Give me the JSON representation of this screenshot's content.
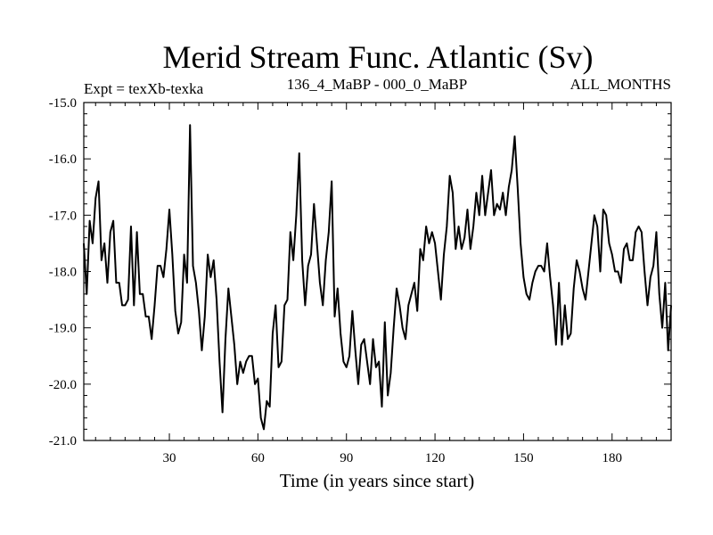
{
  "chart_data": {
    "type": "line",
    "title": "Merid Stream Func. Atlantic (Sv)",
    "subtitle_left": "Expt = texXb-texka",
    "subtitle_center": "136_4_MaBP - 000_0_MaBP",
    "subtitle_right": "ALL_MONTHS",
    "xlabel": "Time (in years since start)",
    "ylabel": "",
    "xlim": [
      1,
      200
    ],
    "ylim": [
      -21.0,
      -15.0
    ],
    "x_ticks": [
      30,
      60,
      90,
      120,
      150,
      180
    ],
    "x_tick_labels": [
      "30",
      "60",
      "90",
      "120",
      "150",
      "180"
    ],
    "y_ticks": [
      -15.0,
      -16.0,
      -17.0,
      -18.0,
      -19.0,
      -20.0,
      -21.0
    ],
    "y_tick_labels": [
      "-15.0",
      "-16.0",
      "-17.0",
      "-18.0",
      "-19.0",
      "-20.0",
      "-21.0"
    ],
    "line_color": "#000000",
    "series": [
      {
        "name": "texXb-texka",
        "x_start": 1,
        "x_step": 1,
        "values": [
          -17.5,
          -18.4,
          -17.1,
          -17.5,
          -16.7,
          -16.4,
          -17.8,
          -17.5,
          -18.2,
          -17.3,
          -17.1,
          -18.2,
          -18.2,
          -18.6,
          -18.6,
          -18.5,
          -17.2,
          -18.6,
          -17.3,
          -18.4,
          -18.4,
          -18.8,
          -18.8,
          -19.2,
          -18.6,
          -17.9,
          -17.9,
          -18.1,
          -17.6,
          -16.9,
          -17.7,
          -18.7,
          -19.1,
          -18.9,
          -17.7,
          -18.2,
          -15.4,
          -17.9,
          -18.2,
          -18.7,
          -19.4,
          -18.8,
          -17.7,
          -18.1,
          -17.8,
          -18.5,
          -19.6,
          -20.5,
          -19.2,
          -18.3,
          -18.8,
          -19.3,
          -20.0,
          -19.6,
          -19.8,
          -19.6,
          -19.5,
          -19.5,
          -20.0,
          -19.9,
          -20.6,
          -20.8,
          -20.3,
          -20.4,
          -19.1,
          -18.6,
          -19.7,
          -19.6,
          -18.6,
          -18.5,
          -17.3,
          -17.8,
          -17.0,
          -15.9,
          -17.8,
          -18.6,
          -17.9,
          -17.7,
          -16.8,
          -17.5,
          -18.2,
          -18.6,
          -17.8,
          -17.3,
          -16.4,
          -18.8,
          -18.3,
          -19.1,
          -19.6,
          -19.7,
          -19.5,
          -18.7,
          -19.4,
          -20.0,
          -19.3,
          -19.2,
          -19.6,
          -20.0,
          -19.2,
          -19.7,
          -19.6,
          -20.4,
          -18.9,
          -20.2,
          -19.8,
          -19.0,
          -18.3,
          -18.6,
          -19.0,
          -19.2,
          -18.6,
          -18.4,
          -18.2,
          -18.7,
          -17.6,
          -17.8,
          -17.2,
          -17.5,
          -17.3,
          -17.5,
          -18.0,
          -18.5,
          -17.7,
          -17.2,
          -16.3,
          -16.6,
          -17.6,
          -17.2,
          -17.6,
          -17.4,
          -16.9,
          -17.6,
          -17.2,
          -16.6,
          -17.0,
          -16.3,
          -17.0,
          -16.6,
          -16.2,
          -17.0,
          -16.8,
          -16.9,
          -16.6,
          -17.0,
          -16.5,
          -16.2,
          -15.6,
          -16.5,
          -17.5,
          -18.1,
          -18.4,
          -18.5,
          -18.2,
          -18.0,
          -17.9,
          -17.9,
          -18.0,
          -17.5,
          -18.1,
          -18.6,
          -19.3,
          -18.2,
          -19.3,
          -18.6,
          -19.2,
          -19.1,
          -18.3,
          -17.8,
          -18.0,
          -18.3,
          -18.5,
          -18.0,
          -17.5,
          -17.0,
          -17.2,
          -18.0,
          -16.9,
          -17.0,
          -17.5,
          -17.7,
          -18.0,
          -18.0,
          -18.2,
          -17.6,
          -17.5,
          -17.8,
          -17.8,
          -17.3,
          -17.2,
          -17.3,
          -18.0,
          -18.6,
          -18.1,
          -17.9,
          -17.3,
          -18.4,
          -19.0,
          -18.2,
          -19.4,
          -18.6
        ]
      }
    ]
  }
}
